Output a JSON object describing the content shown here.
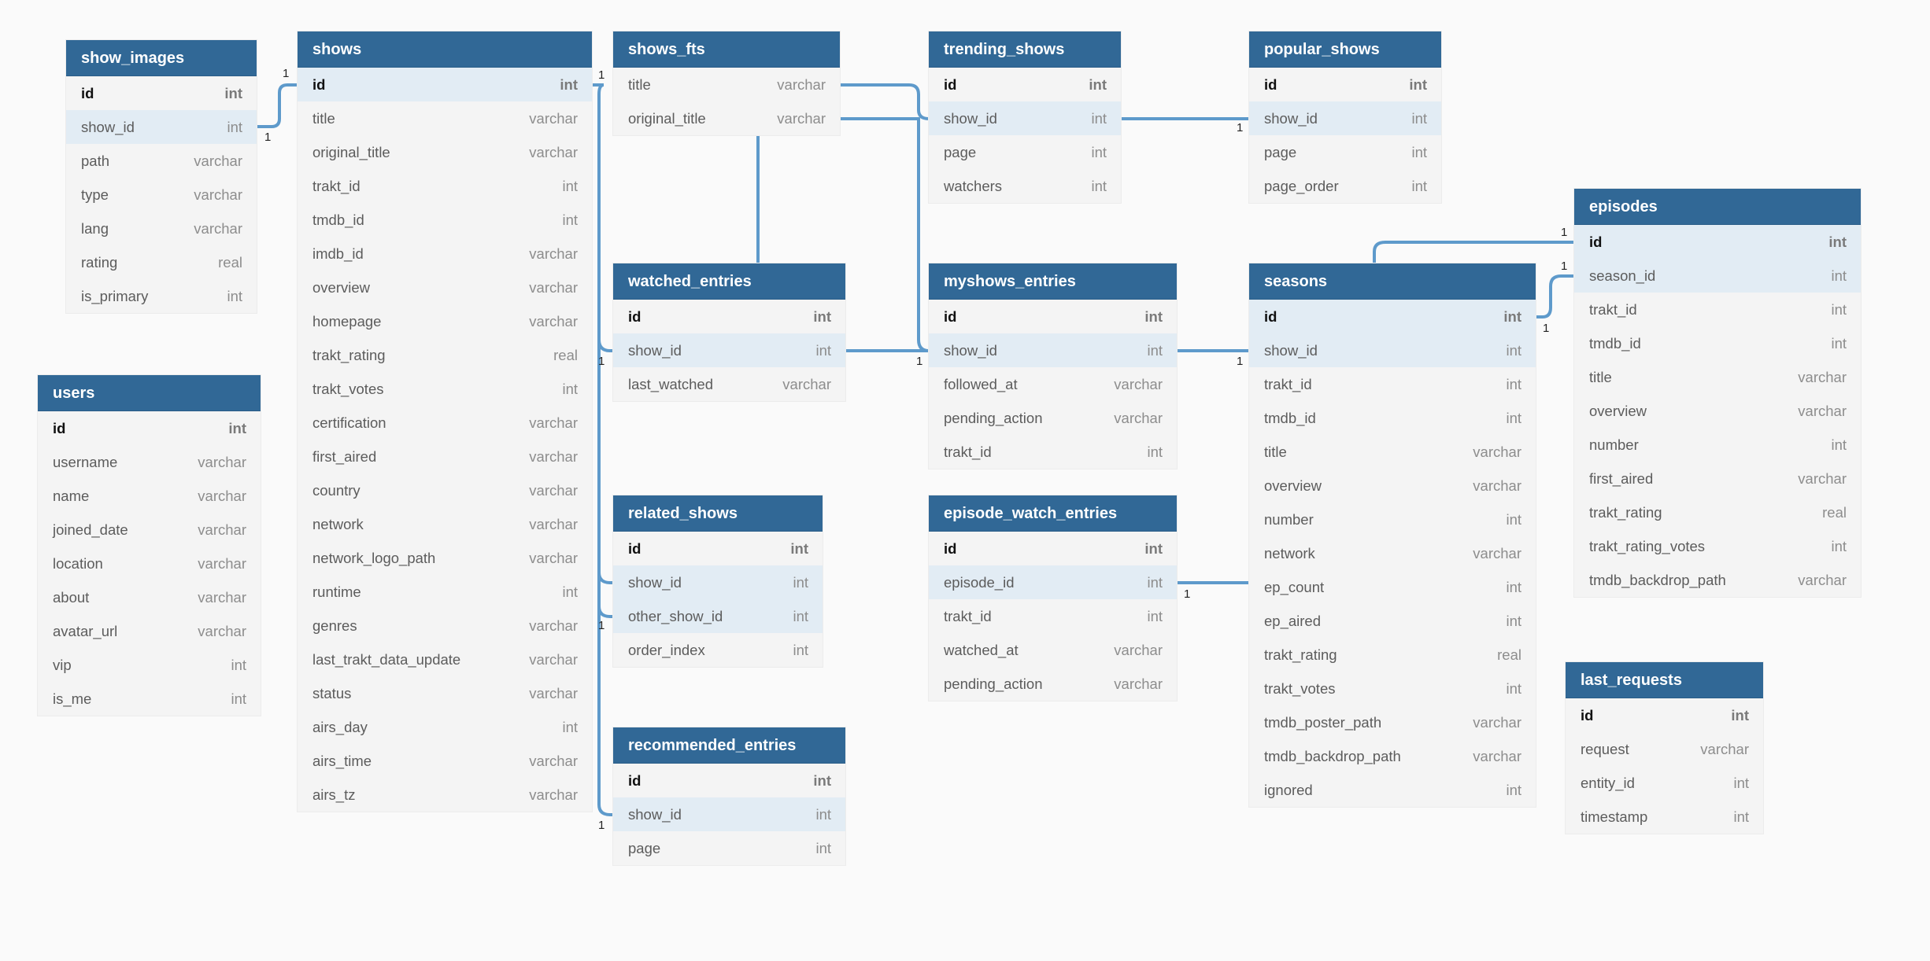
{
  "tables": [
    {
      "id": "show_images",
      "name": "show_images",
      "columns": [
        {
          "name": "id",
          "type": "int",
          "pk": true
        },
        {
          "name": "show_id",
          "type": "int",
          "fk": true
        },
        {
          "name": "path",
          "type": "varchar"
        },
        {
          "name": "type",
          "type": "varchar"
        },
        {
          "name": "lang",
          "type": "varchar"
        },
        {
          "name": "rating",
          "type": "real"
        },
        {
          "name": "is_primary",
          "type": "int"
        }
      ]
    },
    {
      "id": "users",
      "name": "users",
      "columns": [
        {
          "name": "id",
          "type": "int",
          "pk": true
        },
        {
          "name": "username",
          "type": "varchar"
        },
        {
          "name": "name",
          "type": "varchar"
        },
        {
          "name": "joined_date",
          "type": "varchar"
        },
        {
          "name": "location",
          "type": "varchar"
        },
        {
          "name": "about",
          "type": "varchar"
        },
        {
          "name": "avatar_url",
          "type": "varchar"
        },
        {
          "name": "vip",
          "type": "int"
        },
        {
          "name": "is_me",
          "type": "int"
        }
      ]
    },
    {
      "id": "shows",
      "name": "shows",
      "columns": [
        {
          "name": "id",
          "type": "int",
          "pk": true,
          "fk": true
        },
        {
          "name": "title",
          "type": "varchar"
        },
        {
          "name": "original_title",
          "type": "varchar"
        },
        {
          "name": "trakt_id",
          "type": "int"
        },
        {
          "name": "tmdb_id",
          "type": "int"
        },
        {
          "name": "imdb_id",
          "type": "varchar"
        },
        {
          "name": "overview",
          "type": "varchar"
        },
        {
          "name": "homepage",
          "type": "varchar"
        },
        {
          "name": "trakt_rating",
          "type": "real"
        },
        {
          "name": "trakt_votes",
          "type": "int"
        },
        {
          "name": "certification",
          "type": "varchar"
        },
        {
          "name": "first_aired",
          "type": "varchar"
        },
        {
          "name": "country",
          "type": "varchar"
        },
        {
          "name": "network",
          "type": "varchar"
        },
        {
          "name": "network_logo_path",
          "type": "varchar"
        },
        {
          "name": "runtime",
          "type": "int"
        },
        {
          "name": "genres",
          "type": "varchar"
        },
        {
          "name": "last_trakt_data_update",
          "type": "varchar"
        },
        {
          "name": "status",
          "type": "varchar"
        },
        {
          "name": "airs_day",
          "type": "int"
        },
        {
          "name": "airs_time",
          "type": "varchar"
        },
        {
          "name": "airs_tz",
          "type": "varchar"
        }
      ]
    },
    {
      "id": "shows_fts",
      "name": "shows_fts",
      "columns": [
        {
          "name": "title",
          "type": "varchar"
        },
        {
          "name": "original_title",
          "type": "varchar"
        }
      ]
    },
    {
      "id": "watched_entries",
      "name": "watched_entries",
      "columns": [
        {
          "name": "id",
          "type": "int",
          "pk": true
        },
        {
          "name": "show_id",
          "type": "int",
          "fk": true
        },
        {
          "name": "last_watched",
          "type": "varchar"
        }
      ]
    },
    {
      "id": "related_shows",
      "name": "related_shows",
      "columns": [
        {
          "name": "id",
          "type": "int",
          "pk": true
        },
        {
          "name": "show_id",
          "type": "int",
          "fk": true
        },
        {
          "name": "other_show_id",
          "type": "int",
          "fk": true
        },
        {
          "name": "order_index",
          "type": "int"
        }
      ]
    },
    {
      "id": "recommended_entries",
      "name": "recommended_entries",
      "columns": [
        {
          "name": "id",
          "type": "int",
          "pk": true
        },
        {
          "name": "show_id",
          "type": "int",
          "fk": true
        },
        {
          "name": "page",
          "type": "int"
        }
      ]
    },
    {
      "id": "trending_shows",
      "name": "trending_shows",
      "columns": [
        {
          "name": "id",
          "type": "int",
          "pk": true
        },
        {
          "name": "show_id",
          "type": "int",
          "fk": true
        },
        {
          "name": "page",
          "type": "int"
        },
        {
          "name": "watchers",
          "type": "int"
        }
      ]
    },
    {
      "id": "myshows_entries",
      "name": "myshows_entries",
      "columns": [
        {
          "name": "id",
          "type": "int",
          "pk": true
        },
        {
          "name": "show_id",
          "type": "int",
          "fk": true
        },
        {
          "name": "followed_at",
          "type": "varchar"
        },
        {
          "name": "pending_action",
          "type": "varchar"
        },
        {
          "name": "trakt_id",
          "type": "int"
        }
      ]
    },
    {
      "id": "episode_watch_entries",
      "name": "episode_watch_entries",
      "columns": [
        {
          "name": "id",
          "type": "int",
          "pk": true
        },
        {
          "name": "episode_id",
          "type": "int",
          "fk": true
        },
        {
          "name": "trakt_id",
          "type": "int"
        },
        {
          "name": "watched_at",
          "type": "varchar"
        },
        {
          "name": "pending_action",
          "type": "varchar"
        }
      ]
    },
    {
      "id": "popular_shows",
      "name": "popular_shows",
      "columns": [
        {
          "name": "id",
          "type": "int",
          "pk": true
        },
        {
          "name": "show_id",
          "type": "int",
          "fk": true
        },
        {
          "name": "page",
          "type": "int"
        },
        {
          "name": "page_order",
          "type": "int"
        }
      ]
    },
    {
      "id": "seasons",
      "name": "seasons",
      "columns": [
        {
          "name": "id",
          "type": "int",
          "pk": true,
          "fk": true
        },
        {
          "name": "show_id",
          "type": "int",
          "fk": true
        },
        {
          "name": "trakt_id",
          "type": "int"
        },
        {
          "name": "tmdb_id",
          "type": "int"
        },
        {
          "name": "title",
          "type": "varchar"
        },
        {
          "name": "overview",
          "type": "varchar"
        },
        {
          "name": "number",
          "type": "int"
        },
        {
          "name": "network",
          "type": "varchar"
        },
        {
          "name": "ep_count",
          "type": "int"
        },
        {
          "name": "ep_aired",
          "type": "int"
        },
        {
          "name": "trakt_rating",
          "type": "real"
        },
        {
          "name": "trakt_votes",
          "type": "int"
        },
        {
          "name": "tmdb_poster_path",
          "type": "varchar"
        },
        {
          "name": "tmdb_backdrop_path",
          "type": "varchar"
        },
        {
          "name": "ignored",
          "type": "int"
        }
      ]
    },
    {
      "id": "episodes",
      "name": "episodes",
      "columns": [
        {
          "name": "id",
          "type": "int",
          "pk": true,
          "fk": true
        },
        {
          "name": "season_id",
          "type": "int",
          "fk": true
        },
        {
          "name": "trakt_id",
          "type": "int"
        },
        {
          "name": "tmdb_id",
          "type": "int"
        },
        {
          "name": "title",
          "type": "varchar"
        },
        {
          "name": "overview",
          "type": "varchar"
        },
        {
          "name": "number",
          "type": "int"
        },
        {
          "name": "first_aired",
          "type": "varchar"
        },
        {
          "name": "trakt_rating",
          "type": "real"
        },
        {
          "name": "trakt_rating_votes",
          "type": "int"
        },
        {
          "name": "tmdb_backdrop_path",
          "type": "varchar"
        }
      ]
    },
    {
      "id": "last_requests",
      "name": "last_requests",
      "columns": [
        {
          "name": "id",
          "type": "int",
          "pk": true
        },
        {
          "name": "request",
          "type": "varchar"
        },
        {
          "name": "entity_id",
          "type": "int"
        },
        {
          "name": "timestamp",
          "type": "int"
        }
      ]
    }
  ],
  "relations": [
    {
      "from": "show_images.show_id",
      "to": "shows.id",
      "cardinality": [
        "1",
        "1"
      ]
    },
    {
      "from": "shows_fts.title",
      "to": "trending_shows.show_id",
      "cardinality": [
        "",
        ""
      ]
    },
    {
      "from": "trending_shows.show_id",
      "to": "popular_shows.show_id",
      "cardinality": [
        "",
        "1"
      ]
    },
    {
      "from": "watched_entries.show_id",
      "to": "myshows_entries.show_id",
      "cardinality": [
        "",
        "1"
      ]
    },
    {
      "from": "myshows_entries.show_id",
      "to": "seasons.show_id",
      "cardinality": [
        "",
        "1"
      ]
    },
    {
      "from": "seasons.id",
      "to": "episodes.season_id",
      "cardinality": [
        "1",
        "1"
      ]
    },
    {
      "from": "episode_watch_entries.episode_id",
      "to": "seasons.ep_count",
      "cardinality": [
        "1",
        ""
      ]
    },
    {
      "from": "shows.id",
      "to": "related_shows.show_id",
      "cardinality": [
        "1",
        "1"
      ]
    },
    {
      "from": "shows.id",
      "to": "recommended_entries.show_id",
      "cardinality": [
        "",
        "1"
      ]
    }
  ],
  "line_color": "#5e9acb",
  "header_color": "#316896",
  "fk_row_color": "#e2ecf4"
}
